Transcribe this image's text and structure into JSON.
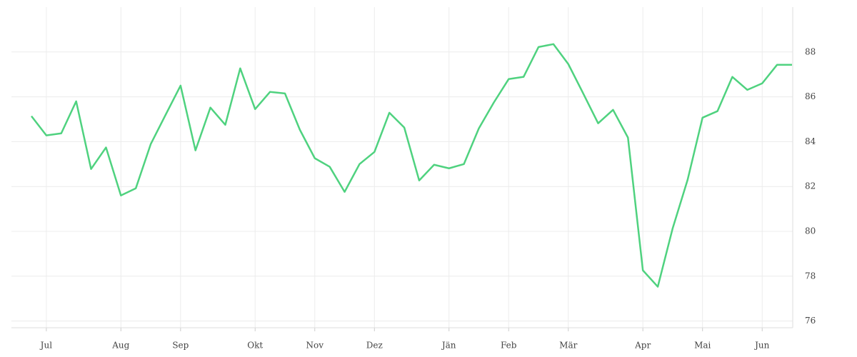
{
  "chart_data": {
    "type": "line",
    "categories": [
      null,
      "Jul",
      null,
      null,
      null,
      null,
      "Aug",
      null,
      null,
      null,
      "Sep",
      null,
      null,
      null,
      null,
      "Okt",
      null,
      null,
      null,
      "Nov",
      null,
      null,
      null,
      "Dez",
      null,
      null,
      null,
      null,
      "Jän",
      null,
      null,
      null,
      "Feb",
      null,
      null,
      null,
      "Mär",
      null,
      null,
      null,
      null,
      "Apr",
      null,
      null,
      null,
      "Mai",
      null,
      null,
      null,
      "Jun",
      null,
      null
    ],
    "series": [
      {
        "color": "#4fd27f",
        "values": [
          85.14,
          84.28,
          84.37,
          85.8,
          82.78,
          83.74,
          81.6,
          81.92,
          83.89,
          85.2,
          86.5,
          83.61,
          85.52,
          84.75,
          87.27,
          85.45,
          86.22,
          86.15,
          84.53,
          83.26,
          82.88,
          81.76,
          83.0,
          83.54,
          85.29,
          84.63,
          82.27,
          82.97,
          82.81,
          83.0,
          84.59,
          85.74,
          86.79,
          86.89,
          88.22,
          88.35,
          87.46,
          86.15,
          84.82,
          85.42,
          84.18,
          78.26,
          77.53,
          80.14,
          82.3,
          85.07,
          85.36,
          86.89,
          86.31,
          86.6,
          87.43,
          87.43
        ]
      }
    ],
    "ylim": [
      75.7,
      90
    ],
    "yticks": [
      76,
      78,
      80,
      82,
      84,
      86,
      88
    ],
    "grid": true
  }
}
